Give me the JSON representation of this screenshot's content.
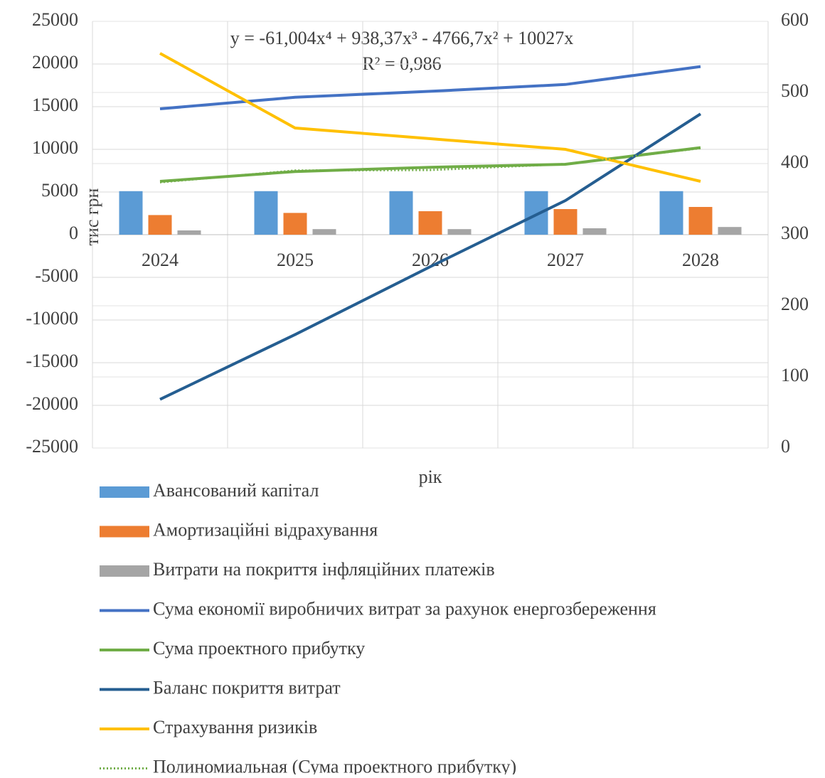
{
  "chart_data": {
    "type": "combo",
    "annotations": [
      "y = -61,004x⁴ + 938,37x³ - 4766,7x² + 10027x",
      "R² = 0,986"
    ],
    "y_label": "тис грн",
    "x_label": "рік",
    "categories": [
      "2024",
      "2025",
      "2026",
      "2027",
      "2028"
    ],
    "ylim": [
      -25000,
      25000
    ],
    "yticks": [
      -25000,
      -20000,
      -15000,
      -10000,
      -5000,
      0,
      5000,
      10000,
      15000,
      20000,
      25000
    ],
    "y2lim": [
      0,
      600
    ],
    "y2ticks": [
      0,
      100,
      200,
      300,
      400,
      500,
      600
    ],
    "grid": true,
    "series": [
      {
        "name": "Авансований капітал",
        "kind": "bar",
        "color": "#5b9bd5",
        "values": [
          5100,
          5100,
          5100,
          5100,
          5100
        ]
      },
      {
        "name": "Амортизаційні відрахування",
        "kind": "bar",
        "color": "#ed7d31",
        "values": [
          2300,
          2550,
          2750,
          3000,
          3250
        ]
      },
      {
        "name": "Витрати на покриття інфляційних  платежів",
        "kind": "bar",
        "color": "#a5a5a5",
        "values": [
          500,
          650,
          650,
          750,
          900
        ]
      },
      {
        "name": "Сума економії виробничих витрат за рахунок енергозбереження",
        "kind": "line",
        "color": "#4472c4",
        "values": [
          14750,
          16100,
          16800,
          17600,
          19700
        ]
      },
      {
        "name": "Сума проектного прибутку",
        "kind": "line",
        "color": "#70ad47",
        "values": [
          6250,
          7400,
          7900,
          8250,
          10200
        ]
      },
      {
        "name": "Баланс покриття витрат",
        "kind": "line",
        "color": "#255e91",
        "values": [
          -19300,
          -11700,
          -3750,
          4000,
          14150
        ]
      },
      {
        "name": "Страхування ризиків",
        "kind": "line",
        "color": "#ffc000",
        "axis": "y2",
        "values": [
          555,
          450,
          435,
          420,
          375
        ]
      },
      {
        "name": "Полиномиальная (Сума проектного прибутку)",
        "kind": "line",
        "style": "dotted",
        "color": "#70ad47",
        "values": [
          6138,
          7518,
          7576,
          8280,
          10135
        ]
      }
    ]
  }
}
